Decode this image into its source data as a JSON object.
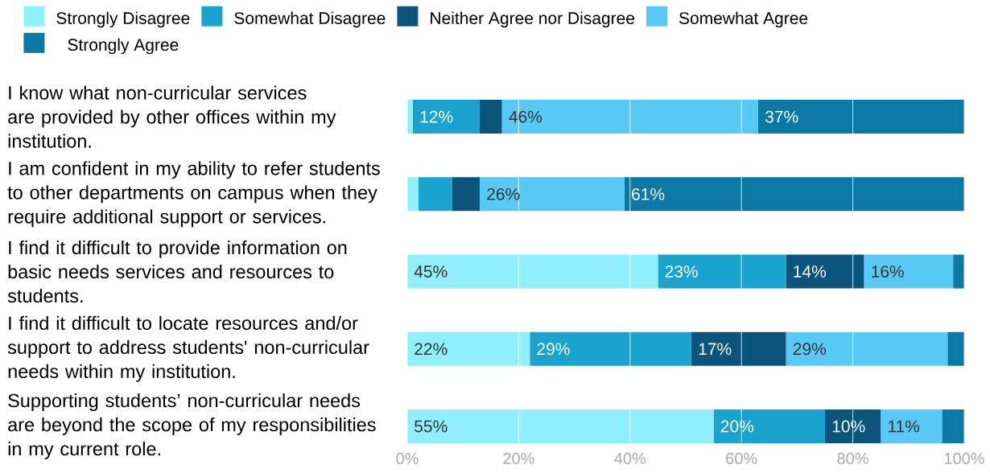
{
  "chart_data": {
    "type": "bar",
    "orientation": "horizontal",
    "stacked": true,
    "grid": "x",
    "legend": "top",
    "categories": [
      "I know what non-curricular services are provided by other offices within my institution.",
      "I am confident in my ability to refer students to other departments on campus when they require additional support or services.",
      "I find it difficult to provide information on basic needs services and resources to students.",
      "I find it difficult to locate resources and/or support to address students' non-curricular needs within my institution.",
      "Supporting students’ non-curricular needs are beyond the scope of my responsibilities in my current role."
    ],
    "xlim": [
      0,
      100
    ],
    "xticks": [
      {
        "value": 0,
        "label": "0%"
      },
      {
        "value": 20,
        "label": "20%"
      },
      {
        "value": 40,
        "label": "40%"
      },
      {
        "value": 60,
        "label": "60%"
      },
      {
        "value": 80,
        "label": "80%"
      },
      {
        "value": 100,
        "label": "100%"
      }
    ],
    "series": [
      {
        "name": "Strongly Disagree",
        "color": "#8ff0fb",
        "values": [
          1,
          2,
          45,
          22,
          55
        ],
        "value_labels": [
          null,
          null,
          "45%",
          "22%",
          "55%"
        ]
      },
      {
        "name": "Somewhat Disagree",
        "color": "#1ba3d0",
        "values": [
          12,
          6,
          23,
          29,
          20
        ],
        "value_labels": [
          "12%",
          null,
          "23%",
          "29%",
          "20%"
        ]
      },
      {
        "name": "Neither Agree nor Disagree",
        "color": "#0b557d",
        "values": [
          4,
          5,
          14,
          17,
          10
        ],
        "value_labels": [
          null,
          null,
          "14%",
          "17%",
          "10%"
        ]
      },
      {
        "name": "Somewhat Agree",
        "color": "#58c9f5",
        "values": [
          46,
          26,
          16,
          29,
          11
        ],
        "value_labels": [
          "46%",
          "26%",
          "16%",
          "29%",
          "11%"
        ]
      },
      {
        "name": "Strongly Agree",
        "color": "#0a79a6",
        "values": [
          37,
          61,
          2,
          3,
          4
        ],
        "value_labels": [
          "37%",
          "61%",
          null,
          null,
          null
        ]
      }
    ]
  }
}
